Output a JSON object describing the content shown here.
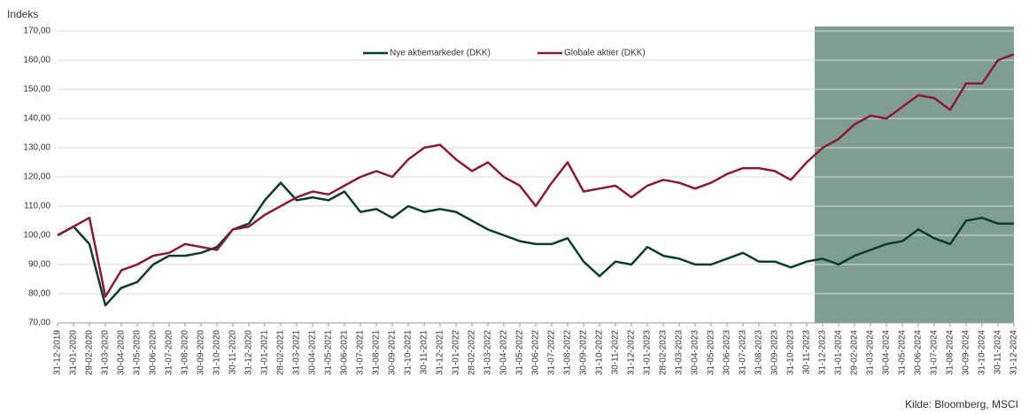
{
  "chart_data": {
    "type": "line",
    "y_axis_label": "Indeks",
    "source": "Kilde: Bloomberg, MSCI",
    "categories": [
      "31-12-2019",
      "31-01-2020",
      "29-02-2020",
      "31-03-2020",
      "30-04-2020",
      "31-05-2020",
      "30-06-2020",
      "31-07-2020",
      "31-08-2020",
      "30-09-2020",
      "31-10-2020",
      "30-11-2020",
      "31-12-2020",
      "31-01-2021",
      "28-02-2021",
      "31-03-2021",
      "30-04-2021",
      "31-05-2021",
      "30-06-2021",
      "31-07-2021",
      "31-08-2021",
      "30-09-2021",
      "31-10-2021",
      "30-11-2021",
      "31-12-2021",
      "31-01-2022",
      "28-02-2022",
      "31-03-2022",
      "30-04-2022",
      "31-05-2022",
      "30-06-2022",
      "31-07-2022",
      "31-08-2022",
      "30-09-2022",
      "31-10-2022",
      "30-11-2022",
      "31-12-2022",
      "31-01-2023",
      "28-02-2023",
      "31-03-2023",
      "30-04-2023",
      "31-05-2023",
      "30-06-2023",
      "31-07-2023",
      "31-08-2023",
      "30-09-2023",
      "31-10-2023",
      "30-11-2023",
      "31-12-2023",
      "31-01-2024",
      "29-02-2024",
      "31-03-2024",
      "30-04-2024",
      "31-05-2024",
      "30-06-2024",
      "31-07-2024",
      "31-08-2024",
      "30-09-2024",
      "31-10-2024",
      "30-11-2024",
      "31-12-2024"
    ],
    "series": [
      {
        "name": "Nye aktiemarkeder (DKK)",
        "color": "#0b3d2e",
        "values": [
          100,
          103,
          97,
          76,
          82,
          84,
          90,
          93,
          93,
          94,
          96,
          102,
          104,
          112,
          118,
          112,
          113,
          112,
          115,
          108,
          109,
          106,
          110,
          108,
          109,
          108,
          105,
          102,
          100,
          98,
          97,
          97,
          99,
          91,
          86,
          91,
          90,
          96,
          93,
          92,
          90,
          90,
          92,
          94,
          91,
          91,
          89,
          91,
          92,
          90,
          93,
          95,
          97,
          98,
          102,
          99,
          97,
          105,
          106,
          104,
          104
        ]
      },
      {
        "name": "Globale aktier (DKK)",
        "color": "#8b1a35",
        "values": [
          100,
          103,
          106,
          79,
          88,
          90,
          93,
          94,
          97,
          96,
          95,
          102,
          103,
          107,
          110,
          113,
          115,
          114,
          117,
          120,
          122,
          120,
          126,
          130,
          131,
          126,
          122,
          125,
          120,
          117,
          110,
          118,
          125,
          115,
          116,
          117,
          113,
          117,
          119,
          118,
          116,
          118,
          121,
          123,
          123,
          122,
          119,
          125,
          130,
          133,
          138,
          141,
          140,
          144,
          148,
          147,
          143,
          152,
          152,
          160,
          162
        ]
      }
    ],
    "ylim": [
      70,
      170
    ],
    "yticks": [
      {
        "value": 70,
        "label": "70,00"
      },
      {
        "value": 80,
        "label": "80,00"
      },
      {
        "value": 90,
        "label": "90,00"
      },
      {
        "value": 100,
        "label": "100,00"
      },
      {
        "value": 110,
        "label": "110,00"
      },
      {
        "value": 120,
        "label": "120,00"
      },
      {
        "value": 130,
        "label": "130,00"
      },
      {
        "value": 140,
        "label": "140,00"
      },
      {
        "value": 150,
        "label": "150,00"
      },
      {
        "value": 160,
        "label": "160,00"
      },
      {
        "value": 170,
        "label": "170,00"
      }
    ],
    "grid": true,
    "legend": "top",
    "highlight": {
      "from": "31-12-2023",
      "to": "31-12-2024",
      "color": "#7f9d94"
    }
  }
}
